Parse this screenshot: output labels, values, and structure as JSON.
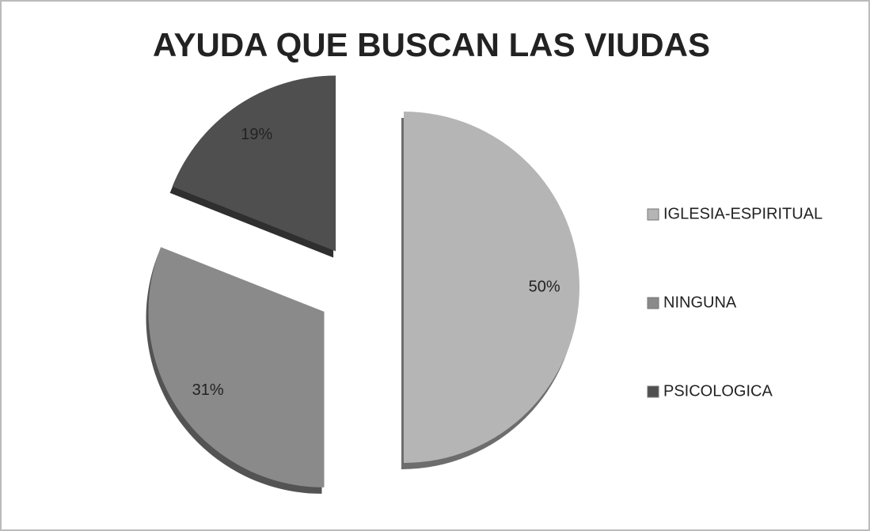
{
  "chart_data": {
    "type": "pie",
    "title": "AYUDA QUE BUSCAN LAS VIUDAS",
    "categories": [
      "IGLESIA-ESPIRITUAL",
      "NINGUNA",
      "PSICOLOGICA"
    ],
    "values": [
      50,
      31,
      19
    ],
    "value_labels": [
      "50%",
      "31%",
      "19%"
    ],
    "colors": [
      "#b5b5b5",
      "#8a8a8a",
      "#4f4f4f"
    ],
    "legend": "right"
  }
}
